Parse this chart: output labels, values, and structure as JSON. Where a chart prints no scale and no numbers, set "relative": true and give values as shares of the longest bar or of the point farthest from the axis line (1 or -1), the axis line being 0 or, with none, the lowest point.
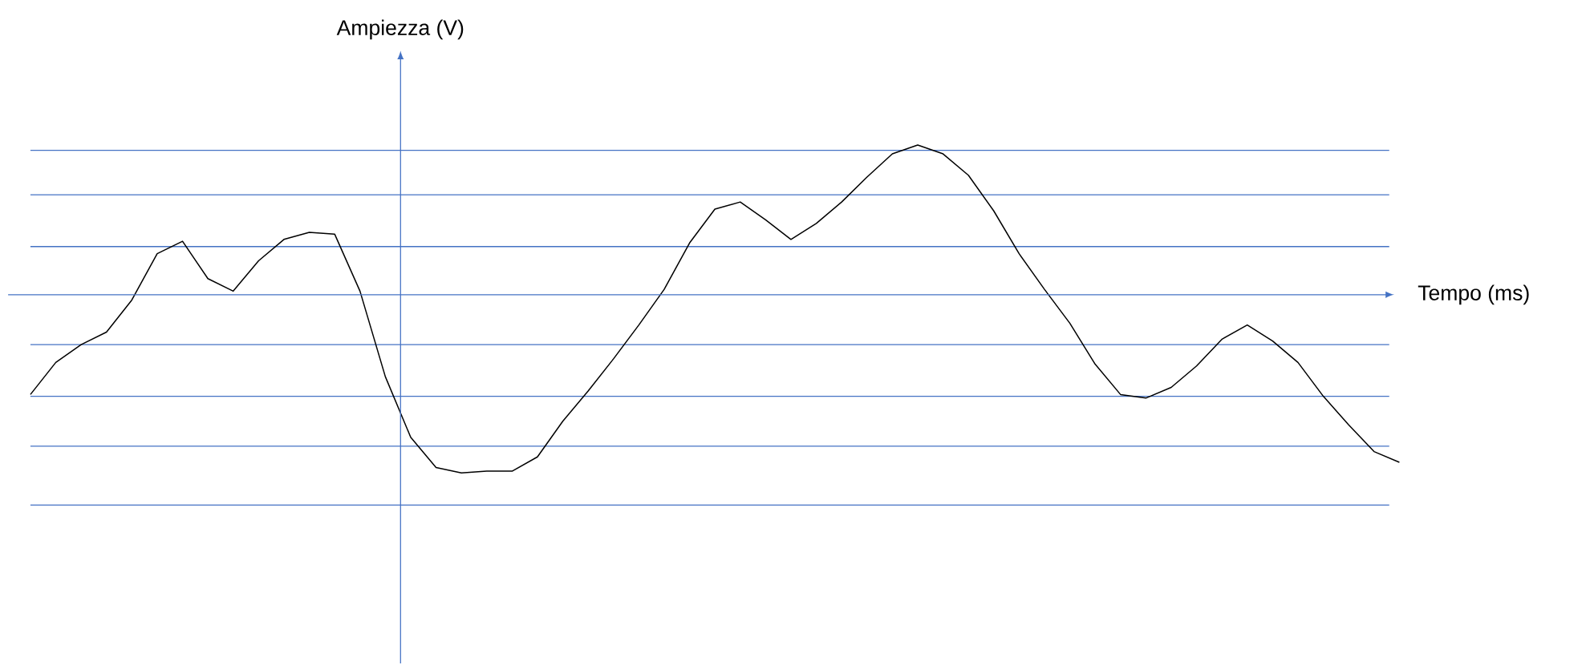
{
  "chart_data": {
    "type": "line",
    "xlabel": "Tempo (ms)",
    "ylabel": "Ampiezza (V)",
    "relative": true,
    "color": "#000000",
    "categories": [
      null,
      null,
      null,
      null,
      null,
      null,
      null,
      null,
      null,
      null,
      null,
      null,
      null,
      null,
      null,
      null,
      null,
      null,
      null,
      null,
      null,
      null,
      null,
      null,
      null,
      null,
      null,
      null,
      null,
      null,
      null,
      null,
      null,
      null,
      null,
      null,
      null,
      null,
      null,
      null,
      null,
      null,
      null,
      null,
      null,
      null,
      null,
      null,
      null,
      null,
      null,
      null,
      null,
      null,
      null
    ],
    "values": [
      -0.56,
      -0.38,
      -0.28,
      -0.21,
      -0.03,
      0.23,
      0.3,
      0.09,
      0.02,
      0.19,
      0.31,
      0.35,
      0.34,
      0.02,
      -0.46,
      -0.8,
      -0.97,
      -1.0,
      -0.99,
      -0.99,
      -0.91,
      -0.71,
      -0.54,
      -0.36,
      -0.17,
      0.03,
      0.29,
      0.48,
      0.52,
      0.42,
      0.31,
      0.4,
      0.52,
      0.66,
      0.79,
      0.84,
      0.79,
      0.67,
      0.47,
      0.23,
      0.03,
      -0.16,
      -0.39,
      -0.56,
      -0.58,
      -0.52,
      -0.4,
      -0.25,
      -0.17,
      -0.26,
      -0.38,
      -0.57,
      -0.73,
      -0.88,
      -0.94
    ],
    "ref_lines": [
      {
        "axis": "y",
        "value": 0.81,
        "color": "#4472c4"
      },
      {
        "axis": "y",
        "value": 0.56,
        "color": "#4472c4"
      },
      {
        "axis": "y",
        "value": 0.27,
        "color": "#4472c4"
      },
      {
        "axis": "y",
        "value": 0,
        "color": "#4472c4"
      },
      {
        "axis": "y",
        "value": -0.28,
        "color": "#4472c4"
      },
      {
        "axis": "y",
        "value": -0.57,
        "color": "#4472c4"
      },
      {
        "axis": "y",
        "value": -0.85,
        "color": "#4472c4"
      },
      {
        "axis": "y",
        "value": -1.18,
        "color": "#4472c4"
      }
    ]
  }
}
